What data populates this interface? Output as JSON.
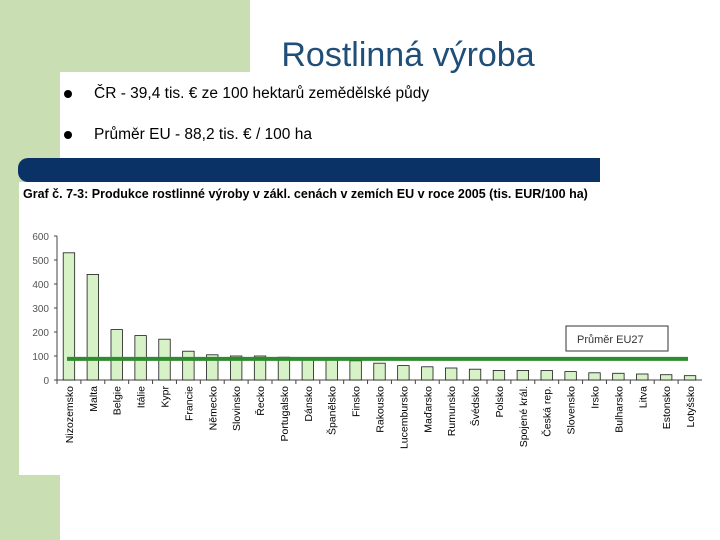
{
  "slide": {
    "title": "Rostlinná výroba",
    "bullets": [
      "ČR - 39,4 tis. € ze 100 hektarů zemědělské půdy",
      "Průměr EU - 88,2 tis. € / 100 ha"
    ]
  },
  "chart_data": {
    "type": "bar",
    "title": "Graf č. 7-3: Produkce rostlinné výroby v zákl. cenách v zemích EU v roce 2005 (tis. EUR/100 ha)",
    "categories": [
      "Nizozemsko",
      "Malta",
      "Belgie",
      "Itálie",
      "Kypr",
      "Francie",
      "Německo",
      "Slovinsko",
      "Řecko",
      "Portugalsko",
      "Dánsko",
      "Španělsko",
      "Finsko",
      "Rakousko",
      "Lucembursko",
      "Maďarsko",
      "Rumunsko",
      "Švédsko",
      "Polsko",
      "Spojené král.",
      "Česká rep.",
      "Slovensko",
      "Irsko",
      "Bulharsko",
      "Litva",
      "Estonsko",
      "Lotyšsko"
    ],
    "values": [
      530,
      440,
      210,
      185,
      170,
      120,
      105,
      100,
      100,
      95,
      90,
      85,
      80,
      70,
      60,
      55,
      50,
      45,
      40,
      40,
      39.4,
      35,
      30,
      28,
      25,
      22,
      18
    ],
    "ylim": [
      0,
      600
    ],
    "yticks": [
      "0",
      "100",
      "200",
      "300",
      "400",
      "500",
      "600"
    ],
    "reference_line": {
      "name": "Průměr EU27",
      "value": 88.2
    },
    "colors": {
      "bar_fill": "#d8f2c8",
      "bar_stroke": "#1a1a1a",
      "reference_line": "#2e8b2e"
    },
    "grid": false,
    "legend": "inside-right"
  }
}
